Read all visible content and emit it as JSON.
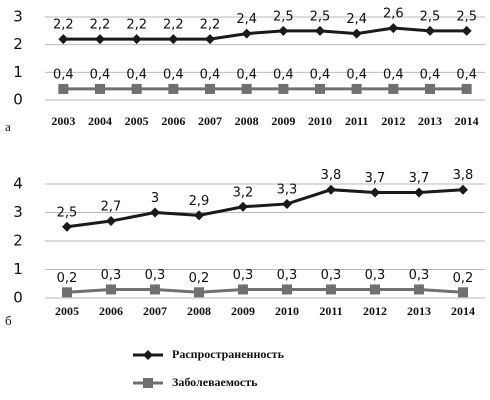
{
  "chart_data": [
    {
      "type": "line",
      "panel": "а",
      "categories": [
        "2003",
        "2004",
        "2005",
        "2006",
        "2007",
        "2008",
        "2009",
        "2010",
        "2011",
        "2012",
        "2013",
        "2014"
      ],
      "ylim": [
        0,
        3
      ],
      "yticks": [
        0,
        1,
        2,
        3
      ],
      "grid": true,
      "series": [
        {
          "color": "#1a1a1a",
          "marker": "diamond",
          "values": [
            2.2,
            2.2,
            2.2,
            2.2,
            2.2,
            2.4,
            2.5,
            2.5,
            2.4,
            2.6,
            2.5,
            2.5
          ],
          "value_labels": [
            "2,2",
            "2,2",
            "2,2",
            "2,2",
            "2,2",
            "2,4",
            "2,5",
            "2,5",
            "2,4",
            "2,6",
            "2,5",
            "2,5"
          ]
        },
        {
          "color": "#707070",
          "marker": "square",
          "values": [
            0.4,
            0.4,
            0.4,
            0.4,
            0.4,
            0.4,
            0.4,
            0.4,
            0.4,
            0.4,
            0.4,
            0.4
          ],
          "value_labels": [
            "0,4",
            "0,4",
            "0,4",
            "0,4",
            "0,4",
            "0,4",
            "0,4",
            "0,4",
            "0,4",
            "0,4",
            "0,4",
            "0,4"
          ]
        }
      ]
    },
    {
      "type": "line",
      "panel": "б",
      "categories": [
        "2005",
        "2006",
        "2007",
        "2008",
        "2009",
        "2010",
        "2011",
        "2012",
        "2013",
        "2014"
      ],
      "ylim": [
        0,
        4
      ],
      "yticks": [
        0,
        1,
        2,
        3,
        4
      ],
      "grid": true,
      "legend": "bottom",
      "series": [
        {
          "name": "Распространенность",
          "color": "#1a1a1a",
          "marker": "diamond",
          "values": [
            2.5,
            2.7,
            3,
            2.9,
            3.2,
            3.3,
            3.8,
            3.7,
            3.7,
            3.8
          ],
          "value_labels": [
            "2,5",
            "2,7",
            "3",
            "2,9",
            "3,2",
            "3,3",
            "3,8",
            "3,7",
            "3,7",
            "3,8"
          ]
        },
        {
          "name": "Заболеваемость",
          "color": "#707070",
          "marker": "square",
          "values": [
            0.2,
            0.3,
            0.3,
            0.2,
            0.3,
            0.3,
            0.3,
            0.3,
            0.3,
            0.2
          ],
          "value_labels": [
            "0,2",
            "0,3",
            "0,3",
            "0,2",
            "0,3",
            "0,3",
            "0,3",
            "0,3",
            "0,3",
            "0,2"
          ]
        }
      ]
    }
  ]
}
